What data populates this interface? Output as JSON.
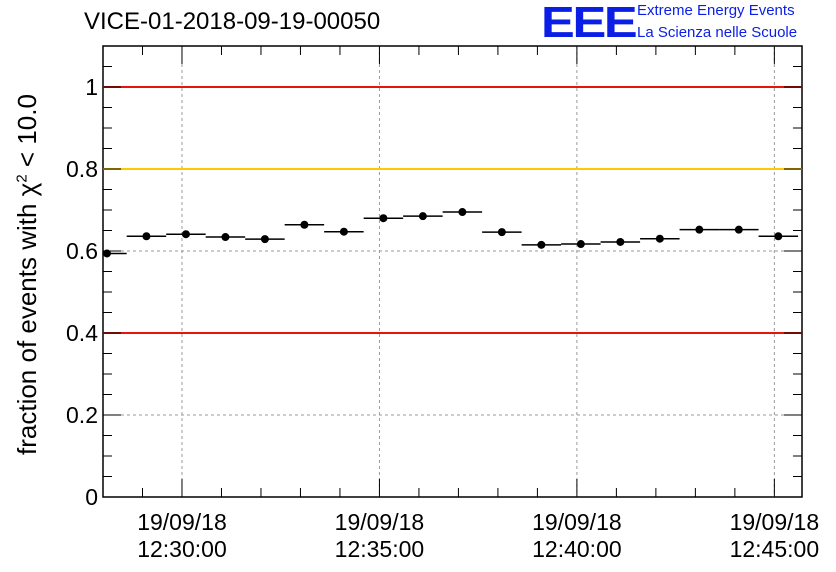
{
  "header": {
    "run_title": "VICE-01-2018-09-19-00050",
    "logo_text": "EEE",
    "logo_line1": "Extreme Energy Events",
    "logo_line2": "La Scienza nelle Scuole"
  },
  "axis_label": {
    "y_prefix": "fraction of events with ",
    "y_chi": "χ",
    "y_sup": "2",
    "y_suffix": " < 10.0"
  },
  "colors": {
    "limit_red": "#e8140c",
    "limit_yellow": "#ffc800",
    "logo_blue": "#0a1ee6"
  },
  "chart_data": {
    "type": "scatter",
    "title": "VICE-01-2018-09-19-00050",
    "xlabel": "",
    "ylabel": "fraction of events with χ² < 10.0",
    "x_unit": "minutes after 12:30:00",
    "xlim": [
      -2.0,
      15.7
    ],
    "ylim": [
      0,
      1.1
    ],
    "x_ticks": [
      {
        "x": 0,
        "date": "19/09/18",
        "time": "12:30:00"
      },
      {
        "x": 5,
        "date": "19/09/18",
        "time": "12:35:00"
      },
      {
        "x": 10,
        "date": "19/09/18",
        "time": "12:40:00"
      },
      {
        "x": 15,
        "date": "19/09/18",
        "time": "12:45:00"
      }
    ],
    "y_ticks": [
      {
        "v": 0,
        "label": "0"
      },
      {
        "v": 0.2,
        "label": "0.2"
      },
      {
        "v": 0.4,
        "label": "0.4"
      },
      {
        "v": 0.6,
        "label": "0.6"
      },
      {
        "v": 0.8,
        "label": "0.8"
      },
      {
        "v": 1.0,
        "label": "1"
      }
    ],
    "grid": true,
    "bin_half_width": 0.5,
    "points": [
      {
        "x": -1.9,
        "y": 0.594
      },
      {
        "x": -0.9,
        "y": 0.636
      },
      {
        "x": 0.1,
        "y": 0.641
      },
      {
        "x": 1.1,
        "y": 0.634
      },
      {
        "x": 2.1,
        "y": 0.629
      },
      {
        "x": 3.1,
        "y": 0.664
      },
      {
        "x": 4.1,
        "y": 0.647
      },
      {
        "x": 5.1,
        "y": 0.68
      },
      {
        "x": 6.1,
        "y": 0.685
      },
      {
        "x": 7.1,
        "y": 0.695
      },
      {
        "x": 8.1,
        "y": 0.646
      },
      {
        "x": 9.1,
        "y": 0.615
      },
      {
        "x": 10.1,
        "y": 0.617
      },
      {
        "x": 11.1,
        "y": 0.622
      },
      {
        "x": 12.1,
        "y": 0.63
      },
      {
        "x": 13.1,
        "y": 0.652
      },
      {
        "x": 14.1,
        "y": 0.652
      },
      {
        "x": 15.1,
        "y": 0.636
      }
    ],
    "reference_lines": [
      {
        "y": 1.0,
        "color": "red"
      },
      {
        "y": 0.8,
        "color": "yellow"
      },
      {
        "y": 0.4,
        "color": "red"
      }
    ]
  }
}
